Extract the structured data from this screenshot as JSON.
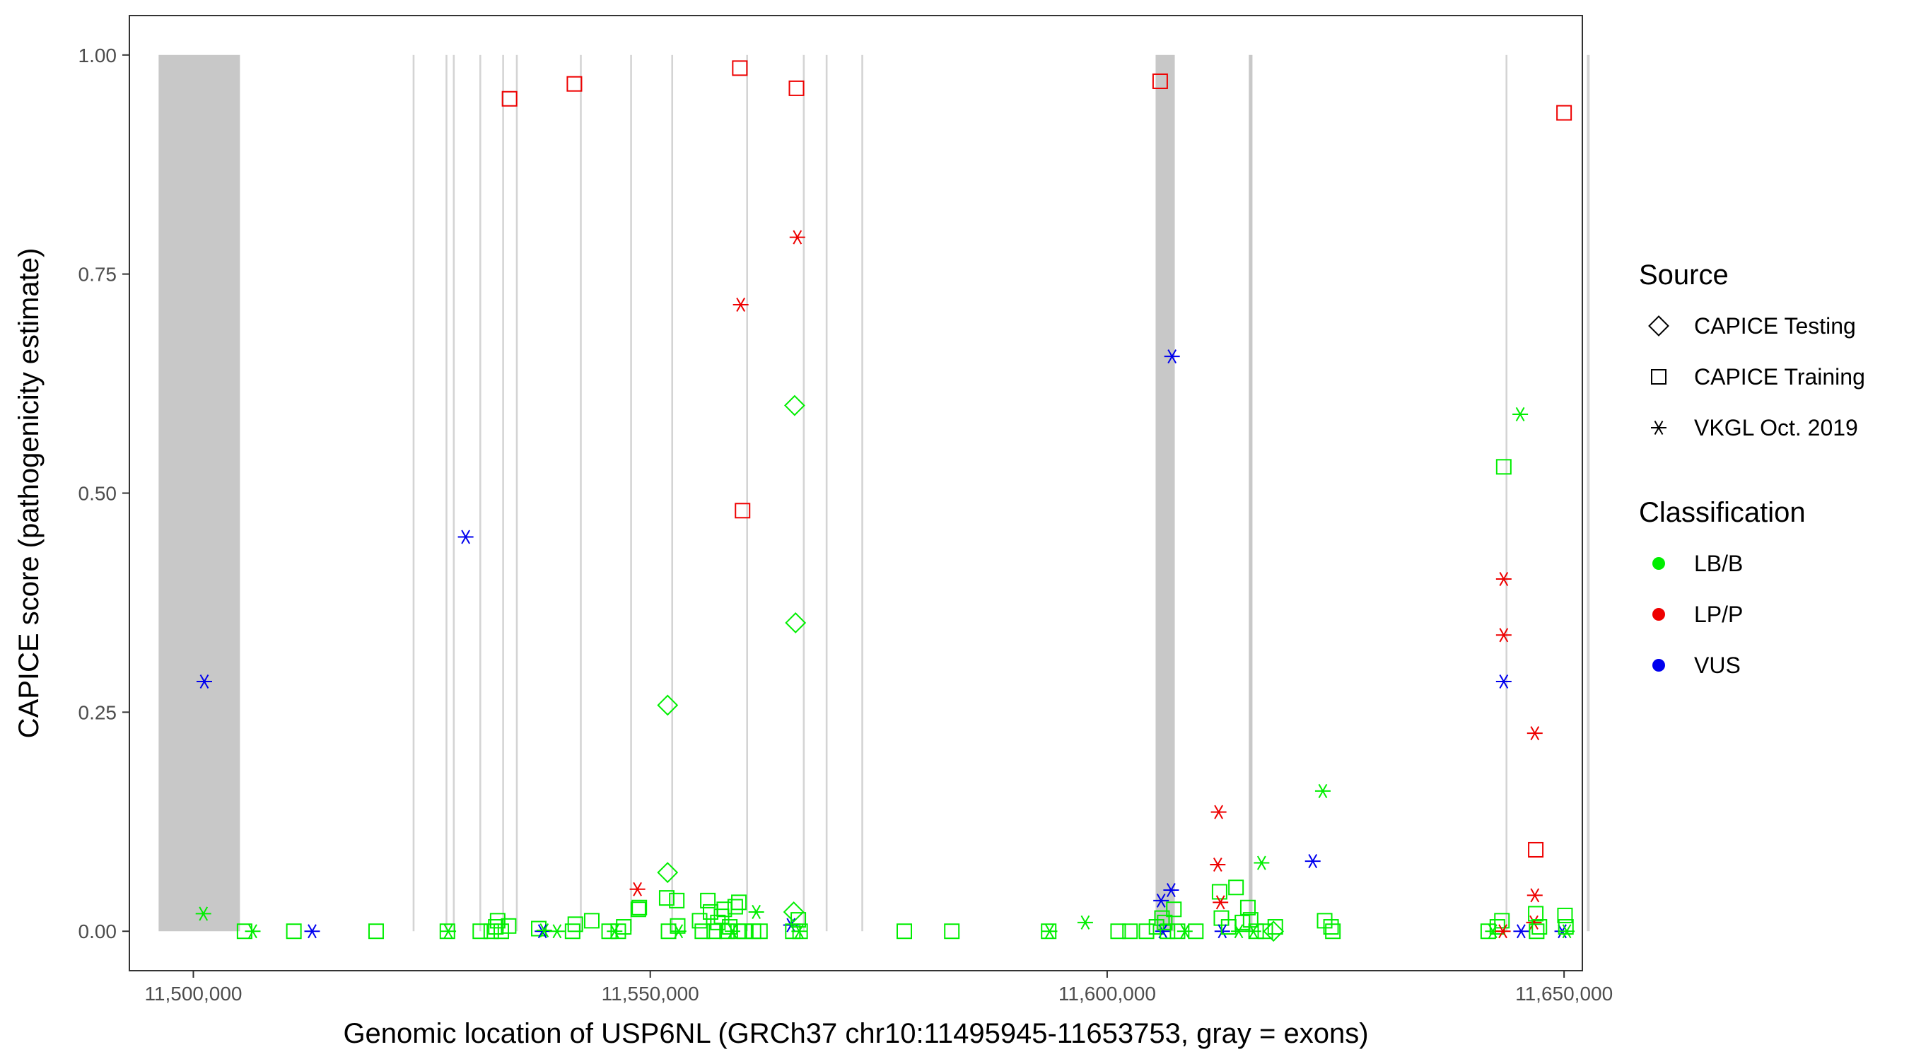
{
  "chart_data": {
    "type": "scatter",
    "xlabel": "Genomic location of USP6NL (GRCh37 chr10:11495945-11653753, gray = exons)",
    "ylabel": "CAPICE score (pathogenicity estimate)",
    "xlim": [
      11493000,
      11652000
    ],
    "ylim": [
      -0.045,
      1.045
    ],
    "x_ticks": [
      11500000,
      11550000,
      11600000,
      11650000
    ],
    "x_tick_labels": [
      "11,500,000",
      "11,550,000",
      "11,600,000",
      "11,650,000"
    ],
    "y_ticks": [
      0,
      0.25,
      0.5,
      0.75,
      1.0
    ],
    "y_tick_labels": [
      "0.00",
      "0.25",
      "0.50",
      "0.75",
      "1.00"
    ],
    "grid": false,
    "exons": [
      [
        11496200,
        11505100
      ],
      [
        11524000,
        11524200
      ],
      [
        11527600,
        11527800
      ],
      [
        11528400,
        11528600
      ],
      [
        11531300,
        11531500
      ],
      [
        11533800,
        11534000
      ],
      [
        11535300,
        11535500
      ],
      [
        11542300,
        11542500
      ],
      [
        11547800,
        11548000
      ],
      [
        11552300,
        11552500
      ],
      [
        11560500,
        11560700
      ],
      [
        11566700,
        11566900
      ],
      [
        11569200,
        11569400
      ],
      [
        11573100,
        11573300
      ],
      [
        11605300,
        11607400
      ],
      [
        11615500,
        11615900
      ],
      [
        11643600,
        11643800
      ],
      [
        11652500,
        11652800
      ]
    ],
    "legend": [
      {
        "title": "Source",
        "entries": [
          {
            "label": "CAPICE Testing",
            "shape": "diamond"
          },
          {
            "label": "CAPICE Training",
            "shape": "square"
          },
          {
            "label": "VKGL Oct. 2019",
            "shape": "asterisk"
          }
        ]
      },
      {
        "title": "Classification",
        "entries": [
          {
            "label": "LB/B",
            "color": "#00ee00"
          },
          {
            "label": "LP/P",
            "color": "#ee0000"
          },
          {
            "label": "VUS",
            "color": "#0000ee"
          }
        ]
      }
    ],
    "legend_position": "right",
    "colors": {
      "LB/B": "#00ee00",
      "LP/P": "#ee0000",
      "VUS": "#0000ee"
    },
    "points": [
      {
        "x": 11501200,
        "y": 0.285,
        "source": "VKGL Oct. 2019",
        "cls": "VUS"
      },
      {
        "x": 11501100,
        "y": 0.02,
        "source": "VKGL Oct. 2019",
        "cls": "LB/B"
      },
      {
        "x": 11505600,
        "y": 0.0,
        "source": "CAPICE Training",
        "cls": "LB/B"
      },
      {
        "x": 11506500,
        "y": 0.0,
        "source": "VKGL Oct. 2019",
        "cls": "LB/B"
      },
      {
        "x": 11511000,
        "y": 0.0,
        "source": "CAPICE Training",
        "cls": "LB/B"
      },
      {
        "x": 11513000,
        "y": 0.0,
        "source": "VKGL Oct. 2019",
        "cls": "VUS"
      },
      {
        "x": 11520000,
        "y": 0.0,
        "source": "CAPICE Training",
        "cls": "LB/B"
      },
      {
        "x": 11527800,
        "y": 0.0,
        "source": "CAPICE Training",
        "cls": "LB/B"
      },
      {
        "x": 11527900,
        "y": 0.0,
        "source": "VKGL Oct. 2019",
        "cls": "LB/B"
      },
      {
        "x": 11529800,
        "y": 0.45,
        "source": "VKGL Oct. 2019",
        "cls": "VUS"
      },
      {
        "x": 11531400,
        "y": 0.0,
        "source": "CAPICE Training",
        "cls": "LB/B"
      },
      {
        "x": 11532600,
        "y": 0.0,
        "source": "CAPICE Training",
        "cls": "LB/B"
      },
      {
        "x": 11533100,
        "y": 0.005,
        "source": "CAPICE Training",
        "cls": "LB/B"
      },
      {
        "x": 11533300,
        "y": 0.012,
        "source": "CAPICE Training",
        "cls": "LB/B"
      },
      {
        "x": 11533700,
        "y": 0.0,
        "source": "CAPICE Training",
        "cls": "LB/B"
      },
      {
        "x": 11534500,
        "y": 0.006,
        "source": "CAPICE Training",
        "cls": "LB/B"
      },
      {
        "x": 11534600,
        "y": 0.95,
        "source": "CAPICE Training",
        "cls": "LP/P"
      },
      {
        "x": 11537800,
        "y": 0.003,
        "source": "CAPICE Training",
        "cls": "LB/B"
      },
      {
        "x": 11538200,
        "y": 0.0,
        "source": "VKGL Oct. 2019",
        "cls": "VUS"
      },
      {
        "x": 11538400,
        "y": 0.001,
        "source": "VKGL Oct. 2019",
        "cls": "LB/B"
      },
      {
        "x": 11539800,
        "y": 0.0,
        "source": "VKGL Oct. 2019",
        "cls": "LB/B"
      },
      {
        "x": 11541700,
        "y": 0.967,
        "source": "CAPICE Training",
        "cls": "LP/P"
      },
      {
        "x": 11541500,
        "y": 0.0,
        "source": "CAPICE Training",
        "cls": "LB/B"
      },
      {
        "x": 11541800,
        "y": 0.008,
        "source": "CAPICE Training",
        "cls": "LB/B"
      },
      {
        "x": 11543600,
        "y": 0.012,
        "source": "CAPICE Training",
        "cls": "LB/B"
      },
      {
        "x": 11545500,
        "y": 0.0,
        "source": "CAPICE Training",
        "cls": "LB/B"
      },
      {
        "x": 11546100,
        "y": 0.0,
        "source": "VKGL Oct. 2019",
        "cls": "LB/B"
      },
      {
        "x": 11546500,
        "y": 0.0,
        "source": "CAPICE Training",
        "cls": "LB/B"
      },
      {
        "x": 11547100,
        "y": 0.005,
        "source": "CAPICE Training",
        "cls": "LB/B"
      },
      {
        "x": 11548600,
        "y": 0.048,
        "source": "VKGL Oct. 2019",
        "cls": "LP/P"
      },
      {
        "x": 11548700,
        "y": 0.025,
        "source": "CAPICE Training",
        "cls": "LB/B"
      },
      {
        "x": 11548800,
        "y": 0.027,
        "source": "CAPICE Training",
        "cls": "LB/B"
      },
      {
        "x": 11551900,
        "y": 0.258,
        "source": "CAPICE Testing",
        "cls": "LB/B"
      },
      {
        "x": 11551900,
        "y": 0.067,
        "source": "CAPICE Testing",
        "cls": "LB/B"
      },
      {
        "x": 11551800,
        "y": 0.038,
        "source": "CAPICE Training",
        "cls": "LB/B"
      },
      {
        "x": 11552000,
        "y": 0.0,
        "source": "CAPICE Training",
        "cls": "LB/B"
      },
      {
        "x": 11552900,
        "y": 0.035,
        "source": "CAPICE Training",
        "cls": "LB/B"
      },
      {
        "x": 11553000,
        "y": 0.006,
        "source": "CAPICE Training",
        "cls": "LB/B"
      },
      {
        "x": 11553100,
        "y": 0.0,
        "source": "VKGL Oct. 2019",
        "cls": "LB/B"
      },
      {
        "x": 11555400,
        "y": 0.012,
        "source": "CAPICE Training",
        "cls": "LB/B"
      },
      {
        "x": 11555700,
        "y": 0.0,
        "source": "CAPICE Training",
        "cls": "LB/B"
      },
      {
        "x": 11556300,
        "y": 0.035,
        "source": "CAPICE Training",
        "cls": "LB/B"
      },
      {
        "x": 11556600,
        "y": 0.022,
        "source": "CAPICE Training",
        "cls": "LB/B"
      },
      {
        "x": 11557000,
        "y": 0.0,
        "source": "CAPICE Training",
        "cls": "LB/B"
      },
      {
        "x": 11557400,
        "y": 0.01,
        "source": "CAPICE Training",
        "cls": "LB/B"
      },
      {
        "x": 11557800,
        "y": 0.017,
        "source": "CAPICE Training",
        "cls": "LB/B"
      },
      {
        "x": 11558100,
        "y": 0.025,
        "source": "CAPICE Training",
        "cls": "LB/B"
      },
      {
        "x": 11558400,
        "y": 0.0,
        "source": "CAPICE Training",
        "cls": "LB/B"
      },
      {
        "x": 11558700,
        "y": 0.005,
        "source": "CAPICE Training",
        "cls": "LB/B"
      },
      {
        "x": 11559000,
        "y": 0.0,
        "source": "VKGL Oct. 2019",
        "cls": "LB/B"
      },
      {
        "x": 11559300,
        "y": 0.028,
        "source": "CAPICE Training",
        "cls": "LB/B"
      },
      {
        "x": 11559600,
        "y": 0.0,
        "source": "CAPICE Training",
        "cls": "LB/B"
      },
      {
        "x": 11559700,
        "y": 0.033,
        "source": "CAPICE Training",
        "cls": "LB/B"
      },
      {
        "x": 11559800,
        "y": 0.985,
        "source": "CAPICE Training",
        "cls": "LP/P"
      },
      {
        "x": 11559900,
        "y": 0.715,
        "source": "VKGL Oct. 2019",
        "cls": "LP/P"
      },
      {
        "x": 11560100,
        "y": 0.48,
        "source": "CAPICE Training",
        "cls": "LP/P"
      },
      {
        "x": 11560300,
        "y": 0.0,
        "source": "CAPICE Training",
        "cls": "LB/B"
      },
      {
        "x": 11561300,
        "y": 0.0,
        "source": "CAPICE Training",
        "cls": "LB/B"
      },
      {
        "x": 11561600,
        "y": 0.022,
        "source": "VKGL Oct. 2019",
        "cls": "LB/B"
      },
      {
        "x": 11562000,
        "y": 0.0,
        "source": "CAPICE Training",
        "cls": "LB/B"
      },
      {
        "x": 11565400,
        "y": 0.007,
        "source": "VKGL Oct. 2019",
        "cls": "VUS"
      },
      {
        "x": 11565600,
        "y": 0.0,
        "source": "CAPICE Training",
        "cls": "LB/B"
      },
      {
        "x": 11565800,
        "y": 0.6,
        "source": "CAPICE Testing",
        "cls": "LB/B"
      },
      {
        "x": 11565900,
        "y": 0.352,
        "source": "CAPICE Testing",
        "cls": "LB/B"
      },
      {
        "x": 11565700,
        "y": 0.022,
        "source": "CAPICE Testing",
        "cls": "LB/B"
      },
      {
        "x": 11566000,
        "y": 0.962,
        "source": "CAPICE Training",
        "cls": "LP/P"
      },
      {
        "x": 11566100,
        "y": 0.792,
        "source": "VKGL Oct. 2019",
        "cls": "LP/P"
      },
      {
        "x": 11566200,
        "y": 0.013,
        "source": "CAPICE Training",
        "cls": "LB/B"
      },
      {
        "x": 11566300,
        "y": 0.0,
        "source": "VKGL Oct. 2019",
        "cls": "LB/B"
      },
      {
        "x": 11566400,
        "y": 0.0,
        "source": "CAPICE Training",
        "cls": "LB/B"
      },
      {
        "x": 11577800,
        "y": 0.0,
        "source": "CAPICE Training",
        "cls": "LB/B"
      },
      {
        "x": 11583000,
        "y": 0.0,
        "source": "CAPICE Training",
        "cls": "LB/B"
      },
      {
        "x": 11593600,
        "y": 0.0,
        "source": "CAPICE Training",
        "cls": "LB/B"
      },
      {
        "x": 11593700,
        "y": 0.0,
        "source": "VKGL Oct. 2019",
        "cls": "LB/B"
      },
      {
        "x": 11597600,
        "y": 0.01,
        "source": "VKGL Oct. 2019",
        "cls": "LB/B"
      },
      {
        "x": 11601200,
        "y": 0.0,
        "source": "CAPICE Training",
        "cls": "LB/B"
      },
      {
        "x": 11602500,
        "y": 0.0,
        "source": "CAPICE Training",
        "cls": "LB/B"
      },
      {
        "x": 11604300,
        "y": 0.0,
        "source": "CAPICE Training",
        "cls": "LB/B"
      },
      {
        "x": 11605400,
        "y": 0.005,
        "source": "CAPICE Training",
        "cls": "LB/B"
      },
      {
        "x": 11605800,
        "y": 0.97,
        "source": "CAPICE Training",
        "cls": "LP/P"
      },
      {
        "x": 11605900,
        "y": 0.035,
        "source": "VKGL Oct. 2019",
        "cls": "VUS"
      },
      {
        "x": 11606000,
        "y": 0.015,
        "source": "CAPICE Training",
        "cls": "LB/B"
      },
      {
        "x": 11606100,
        "y": 0.0,
        "source": "VKGL Oct. 2019",
        "cls": "VUS"
      },
      {
        "x": 11606300,
        "y": 0.01,
        "source": "CAPICE Training",
        "cls": "LB/B"
      },
      {
        "x": 11606600,
        "y": 0.0,
        "source": "CAPICE Training",
        "cls": "LB/B"
      },
      {
        "x": 11607000,
        "y": 0.047,
        "source": "VKGL Oct. 2019",
        "cls": "VUS"
      },
      {
        "x": 11607100,
        "y": 0.656,
        "source": "VKGL Oct. 2019",
        "cls": "VUS"
      },
      {
        "x": 11607300,
        "y": 0.025,
        "source": "CAPICE Training",
        "cls": "LB/B"
      },
      {
        "x": 11607700,
        "y": 0.0,
        "source": "CAPICE Training",
        "cls": "LB/B"
      },
      {
        "x": 11608500,
        "y": 0.0,
        "source": "VKGL Oct. 2019",
        "cls": "LB/B"
      },
      {
        "x": 11609700,
        "y": 0.0,
        "source": "CAPICE Training",
        "cls": "LB/B"
      },
      {
        "x": 11612200,
        "y": 0.136,
        "source": "VKGL Oct. 2019",
        "cls": "LP/P"
      },
      {
        "x": 11612100,
        "y": 0.076,
        "source": "VKGL Oct. 2019",
        "cls": "LP/P"
      },
      {
        "x": 11612300,
        "y": 0.045,
        "source": "CAPICE Training",
        "cls": "LB/B"
      },
      {
        "x": 11612400,
        "y": 0.033,
        "source": "VKGL Oct. 2019",
        "cls": "LP/P"
      },
      {
        "x": 11612500,
        "y": 0.015,
        "source": "CAPICE Training",
        "cls": "LB/B"
      },
      {
        "x": 11612600,
        "y": 0.0,
        "source": "VKGL Oct. 2019",
        "cls": "VUS"
      },
      {
        "x": 11613300,
        "y": 0.005,
        "source": "CAPICE Training",
        "cls": "LB/B"
      },
      {
        "x": 11614100,
        "y": 0.05,
        "source": "CAPICE Training",
        "cls": "LB/B"
      },
      {
        "x": 11614400,
        "y": 0.0,
        "source": "VKGL Oct. 2019",
        "cls": "LB/B"
      },
      {
        "x": 11614800,
        "y": 0.01,
        "source": "CAPICE Training",
        "cls": "LB/B"
      },
      {
        "x": 11615400,
        "y": 0.027,
        "source": "CAPICE Training",
        "cls": "LB/B"
      },
      {
        "x": 11615700,
        "y": 0.013,
        "source": "CAPICE Training",
        "cls": "LB/B"
      },
      {
        "x": 11616000,
        "y": 0.0,
        "source": "VKGL Oct. 2019",
        "cls": "LB/B"
      },
      {
        "x": 11616300,
        "y": 0.0,
        "source": "CAPICE Training",
        "cls": "LB/B"
      },
      {
        "x": 11616900,
        "y": 0.078,
        "source": "VKGL Oct. 2019",
        "cls": "LB/B"
      },
      {
        "x": 11617300,
        "y": 0.0,
        "source": "CAPICE Training",
        "cls": "LB/B"
      },
      {
        "x": 11618200,
        "y": 0.0,
        "source": "CAPICE Testing",
        "cls": "LB/B"
      },
      {
        "x": 11618400,
        "y": 0.005,
        "source": "CAPICE Training",
        "cls": "LB/B"
      },
      {
        "x": 11622500,
        "y": 0.08,
        "source": "VKGL Oct. 2019",
        "cls": "VUS"
      },
      {
        "x": 11623600,
        "y": 0.16,
        "source": "VKGL Oct. 2019",
        "cls": "LB/B"
      },
      {
        "x": 11623800,
        "y": 0.012,
        "source": "CAPICE Training",
        "cls": "LB/B"
      },
      {
        "x": 11624500,
        "y": 0.005,
        "source": "CAPICE Training",
        "cls": "LB/B"
      },
      {
        "x": 11624700,
        "y": 0.0,
        "source": "CAPICE Training",
        "cls": "LB/B"
      },
      {
        "x": 11641700,
        "y": 0.0,
        "source": "CAPICE Training",
        "cls": "LB/B"
      },
      {
        "x": 11642200,
        "y": 0.0,
        "source": "VKGL Oct. 2019",
        "cls": "LB/B"
      },
      {
        "x": 11642700,
        "y": 0.005,
        "source": "CAPICE Training",
        "cls": "LB/B"
      },
      {
        "x": 11643200,
        "y": 0.012,
        "source": "CAPICE Training",
        "cls": "LB/B"
      },
      {
        "x": 11643300,
        "y": 0.0,
        "source": "VKGL Oct. 2019",
        "cls": "LP/P"
      },
      {
        "x": 11643400,
        "y": 0.53,
        "source": "CAPICE Training",
        "cls": "LB/B"
      },
      {
        "x": 11643400,
        "y": 0.402,
        "source": "VKGL Oct. 2019",
        "cls": "LP/P"
      },
      {
        "x": 11643400,
        "y": 0.338,
        "source": "VKGL Oct. 2019",
        "cls": "LP/P"
      },
      {
        "x": 11643400,
        "y": 0.285,
        "source": "VKGL Oct. 2019",
        "cls": "VUS"
      },
      {
        "x": 11645200,
        "y": 0.59,
        "source": "VKGL Oct. 2019",
        "cls": "LB/B"
      },
      {
        "x": 11645300,
        "y": 0.0,
        "source": "VKGL Oct. 2019",
        "cls": "VUS"
      },
      {
        "x": 11646800,
        "y": 0.226,
        "source": "VKGL Oct. 2019",
        "cls": "LP/P"
      },
      {
        "x": 11646900,
        "y": 0.093,
        "source": "CAPICE Training",
        "cls": "LP/P"
      },
      {
        "x": 11646800,
        "y": 0.041,
        "source": "VKGL Oct. 2019",
        "cls": "LP/P"
      },
      {
        "x": 11646900,
        "y": 0.02,
        "source": "CAPICE Training",
        "cls": "LB/B"
      },
      {
        "x": 11646700,
        "y": 0.01,
        "source": "VKGL Oct. 2019",
        "cls": "LP/P"
      },
      {
        "x": 11647000,
        "y": 0.0,
        "source": "CAPICE Training",
        "cls": "LB/B"
      },
      {
        "x": 11647300,
        "y": 0.005,
        "source": "CAPICE Training",
        "cls": "LB/B"
      },
      {
        "x": 11649800,
        "y": 0.0,
        "source": "VKGL Oct. 2019",
        "cls": "VUS"
      },
      {
        "x": 11650000,
        "y": 0.934,
        "source": "CAPICE Training",
        "cls": "LP/P"
      },
      {
        "x": 11650100,
        "y": 0.018,
        "source": "CAPICE Training",
        "cls": "LB/B"
      },
      {
        "x": 11650200,
        "y": 0.005,
        "source": "CAPICE Training",
        "cls": "LB/B"
      },
      {
        "x": 11650300,
        "y": 0.0,
        "source": "VKGL Oct. 2019",
        "cls": "LB/B"
      }
    ]
  }
}
